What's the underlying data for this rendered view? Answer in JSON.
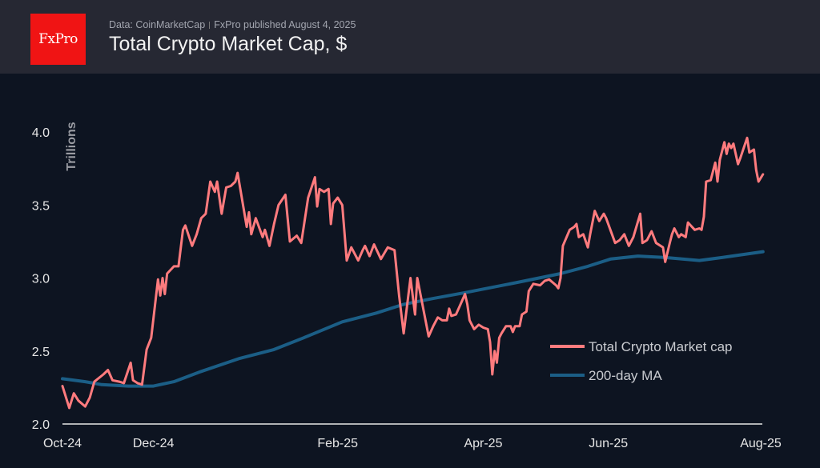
{
  "header": {
    "logo_text": "FxPro",
    "source": "Data: CoinMarketCap",
    "published": "FxPro published August 4, 2025",
    "title": "Total Crypto Market Cap, $"
  },
  "colors": {
    "market_cap": "#ff7b7e",
    "ma": "#1b5e86",
    "header_bg": "#262833",
    "chart_bg": "#0d1421",
    "logo": "#f01414"
  },
  "chart_data": {
    "type": "line",
    "title": "Total Crypto Market Cap, $",
    "ylabel": "Trillions",
    "xlabel": "",
    "x_units": "days since start (Oct-24)",
    "xlim": [
      0,
      308
    ],
    "ylim": [
      2.0,
      4.0
    ],
    "yticks": [
      {
        "v": 2.0,
        "label": "2.0"
      },
      {
        "v": 2.5,
        "label": "2.5"
      },
      {
        "v": 3.0,
        "label": "3.0"
      },
      {
        "v": 3.5,
        "label": "3.5"
      },
      {
        "v": 4.0,
        "label": "4.0"
      }
    ],
    "xticks": [
      {
        "x": 0,
        "label": "Oct-24"
      },
      {
        "x": 40,
        "label": "Dec-24"
      },
      {
        "x": 121,
        "label": "Feb-25"
      },
      {
        "x": 185,
        "label": "Apr-25"
      },
      {
        "x": 240,
        "label": "Jun-25"
      },
      {
        "x": 307,
        "label": "Aug-25"
      }
    ],
    "grid": false,
    "legend_position": "bottom-right",
    "series": [
      {
        "name": "Total Crypto Market cap",
        "color": "#ff7b7e",
        "x": [
          0,
          3,
          5,
          7,
          10,
          12,
          14,
          18,
          20,
          22,
          25,
          27,
          30,
          31,
          33,
          35,
          37,
          39,
          42,
          43,
          44,
          45,
          46,
          49,
          51,
          53,
          54,
          57,
          59,
          61,
          63,
          65,
          67,
          68,
          70,
          72,
          74,
          76,
          77,
          81,
          82,
          83,
          85,
          88,
          89,
          91,
          93,
          95,
          98,
          100,
          103,
          105,
          108,
          111,
          112,
          113,
          115,
          117,
          118,
          119,
          121,
          123,
          125,
          127,
          130,
          132,
          133,
          135,
          137,
          140,
          143,
          146,
          148,
          150,
          153,
          155,
          156,
          161,
          163,
          165,
          167,
          169,
          170,
          171,
          173,
          175,
          177,
          178,
          179,
          181,
          183,
          185,
          187,
          188,
          189,
          190,
          191,
          192,
          193,
          195,
          197,
          198,
          199,
          201,
          202,
          204,
          205,
          207,
          210,
          212,
          214,
          217,
          218,
          219,
          220,
          223,
          225,
          226,
          227,
          229,
          231,
          232,
          234,
          236,
          238,
          239,
          243,
          245,
          247,
          249,
          251,
          254,
          255,
          257,
          259,
          261,
          264,
          265,
          267,
          268,
          269,
          271,
          272,
          274,
          275,
          278,
          280,
          281,
          282,
          283,
          285,
          287,
          288,
          289,
          291,
          292,
          293,
          294,
          295,
          297,
          298,
          301,
          302,
          304,
          305,
          306,
          308
        ],
        "y": [
          2.26,
          2.11,
          2.21,
          2.16,
          2.12,
          2.18,
          2.29,
          2.34,
          2.37,
          2.3,
          2.29,
          2.28,
          2.42,
          2.3,
          2.28,
          2.27,
          2.51,
          2.59,
          2.99,
          2.88,
          3.0,
          2.89,
          3.03,
          3.08,
          3.08,
          3.33,
          3.36,
          3.22,
          3.3,
          3.41,
          3.44,
          3.66,
          3.59,
          3.66,
          3.44,
          3.62,
          3.63,
          3.66,
          3.72,
          3.35,
          3.45,
          3.3,
          3.41,
          3.28,
          3.33,
          3.22,
          3.37,
          3.5,
          3.57,
          3.25,
          3.29,
          3.24,
          3.55,
          3.69,
          3.49,
          3.61,
          3.59,
          3.61,
          3.37,
          3.51,
          3.55,
          3.5,
          3.12,
          3.21,
          3.12,
          3.19,
          3.22,
          3.15,
          3.23,
          3.13,
          3.21,
          3.19,
          2.88,
          2.62,
          3.0,
          2.75,
          3.0,
          2.6,
          2.67,
          2.73,
          2.71,
          2.71,
          2.79,
          2.74,
          2.75,
          2.82,
          2.89,
          2.82,
          2.71,
          2.65,
          2.68,
          2.66,
          2.65,
          2.56,
          2.34,
          2.5,
          2.42,
          2.59,
          2.62,
          2.67,
          2.67,
          2.63,
          2.67,
          2.67,
          2.75,
          2.77,
          2.91,
          2.96,
          2.95,
          2.98,
          2.99,
          2.95,
          2.93,
          3.0,
          3.22,
          3.33,
          3.35,
          3.37,
          3.28,
          3.3,
          3.21,
          3.3,
          3.46,
          3.39,
          3.44,
          3.41,
          3.24,
          3.26,
          3.3,
          3.22,
          3.28,
          3.44,
          3.24,
          3.26,
          3.32,
          3.24,
          3.21,
          3.11,
          3.24,
          3.3,
          3.34,
          3.28,
          3.3,
          3.28,
          3.38,
          3.33,
          3.34,
          3.33,
          3.42,
          3.66,
          3.67,
          3.79,
          3.66,
          3.81,
          3.93,
          3.85,
          3.92,
          3.89,
          3.92,
          3.78,
          3.82,
          3.96,
          3.86,
          3.88,
          3.74,
          3.66,
          3.71
        ]
      },
      {
        "name": "200-day MA",
        "color": "#1b5e86",
        "x": [
          0,
          10,
          17,
          29,
          40,
          49,
          61,
          78,
          93,
          106,
          123,
          138,
          150,
          163,
          177,
          200,
          219,
          231,
          241,
          253,
          265,
          280,
          290,
          308
        ],
        "y": [
          2.31,
          2.29,
          2.27,
          2.26,
          2.26,
          2.29,
          2.36,
          2.45,
          2.51,
          2.59,
          2.7,
          2.76,
          2.82,
          2.86,
          2.9,
          2.97,
          3.03,
          3.08,
          3.13,
          3.15,
          3.14,
          3.12,
          3.14,
          3.18
        ]
      }
    ]
  }
}
